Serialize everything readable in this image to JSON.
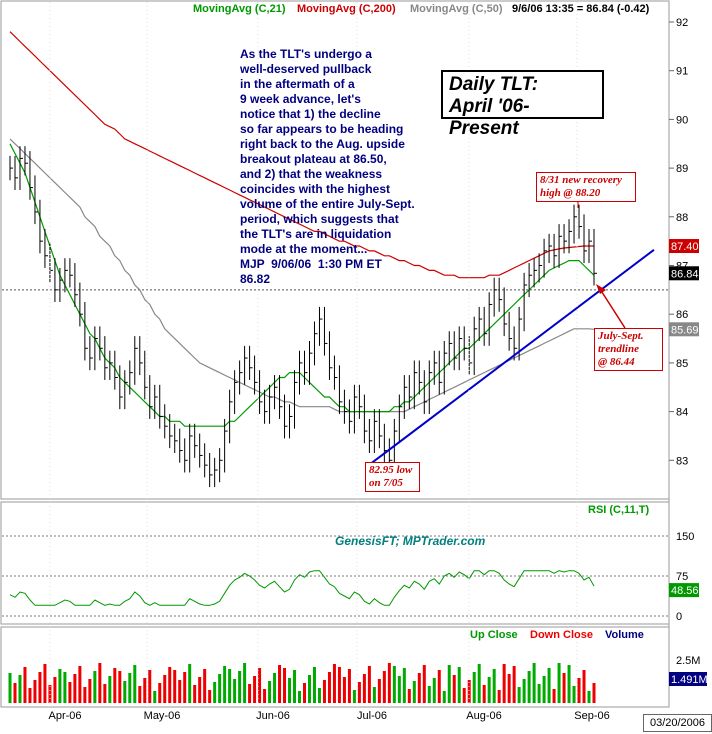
{
  "header": {
    "ma21": "MovingAvg (C,21)",
    "ma200": "MovingAvg (C,200)",
    "ma50": "MovingAvg (C,50)",
    "quote": "9/6/06 13:35 = 86.84 (-0.42)"
  },
  "colors": {
    "ma21": "#009900",
    "ma200": "#cc0000",
    "ma50": "#888888",
    "trendline": "#0000cc",
    "price": "#000000",
    "up_volume": "#00aa00",
    "down_volume": "#ee0000",
    "navy": "#000080"
  },
  "title": {
    "line1": "Daily TLT:",
    "line2": "April '06-Present"
  },
  "commentary": "As the TLT's undergo a\nwell-deserved pullback\nin the aftermath of a\n9 week advance, let's\nnotice that 1) the decline\nso far appears to be heading\nright back to the Aug. upside\nbreakout plateau at 86.50,\nand 2) that the weakness\ncoincides with the highest\nvolume of the entire July-Sept.\nperiod, which suggests that\nthe TLT's are in liquidation\nmode at the moment...\nMJP  9/06/06  1:30 PM ET\n86.82",
  "callouts": {
    "recovery": [
      "8/31 new recovery",
      "high @ 88.20"
    ],
    "trendline": [
      "July-Sept.",
      "trendline",
      "@ 86.44"
    ],
    "low": [
      "82.95 low",
      "on 7/05"
    ]
  },
  "watermark": "GenesisFT; MPTrader.com",
  "rsi_label": "RSI (C,11,T)",
  "volume_legend": {
    "up": "Up Close",
    "down": "Down Close",
    "volume": "Volume"
  },
  "date_stamp": "03/20/2006",
  "chart_data": [
    {
      "type": "ohlc",
      "x_ticks": [
        "Apr-06",
        "May-06",
        "Jun-06",
        "Jul-06",
        "Aug-06",
        "Sep-06"
      ],
      "y_ticks": [
        83,
        84,
        85,
        86,
        87,
        88,
        89,
        90,
        91,
        92
      ],
      "ylim": [
        82.3,
        92.3
      ],
      "last_labels": {
        "ma200": 87.4,
        "price": 86.84,
        "ma50": 85.69
      },
      "close": [
        89.0,
        88.8,
        89.2,
        89.1,
        88.6,
        88.1,
        87.5,
        87.2,
        86.9,
        86.5,
        86.7,
        86.9,
        86.8,
        86.4,
        86.0,
        85.3,
        85.1,
        85.5,
        85.3,
        84.9,
        85.0,
        84.7,
        84.3,
        84.6,
        84.8,
        85.3,
        85.0,
        84.5,
        84.1,
        84.3,
        83.9,
        83.7,
        83.5,
        83.4,
        83.2,
        83.0,
        83.5,
        83.3,
        83.1,
        82.9,
        82.7,
        82.8,
        83.0,
        83.6,
        84.2,
        84.6,
        84.8,
        85.1,
        84.9,
        84.6,
        84.2,
        84.0,
        84.3,
        84.5,
        84.1,
        83.7,
        83.9,
        84.6,
        85.0,
        84.8,
        85.2,
        85.6,
        85.9,
        85.4,
        84.9,
        84.7,
        84.2,
        84.0,
        83.8,
        84.3,
        84.1,
        83.6,
        83.4,
        83.8,
        83.5,
        83.2,
        83.0,
        83.6,
        84.1,
        84.5,
        84.3,
        84.8,
        84.6,
        84.2,
        84.8,
        85.0,
        84.6,
        85.2,
        85.4,
        85.1,
        85.5,
        85.3,
        85.0,
        85.7,
        85.9,
        85.6,
        86.2,
        86.5,
        86.3,
        85.8,
        85.5,
        85.3,
        85.9,
        86.6,
        86.8,
        86.9,
        87.0,
        87.3,
        87.4,
        87.2,
        87.6,
        87.5,
        87.7,
        88.0,
        87.8,
        87.3,
        87.5,
        86.84
      ],
      "ma21": [
        89.5,
        89.3,
        89.1,
        88.9,
        88.6,
        88.3,
        88.0,
        87.7,
        87.4,
        87.1,
        86.8,
        86.6,
        86.4,
        86.2,
        86.0,
        85.8,
        85.6,
        85.5,
        85.3,
        85.1,
        85.0,
        84.9,
        84.7,
        84.6,
        84.5,
        84.4,
        84.3,
        84.2,
        84.1,
        84.0,
        83.9,
        83.9,
        83.8,
        83.8,
        83.8,
        83.7,
        83.7,
        83.7,
        83.7,
        83.7,
        83.7,
        83.7,
        83.7,
        83.7,
        83.8,
        83.8,
        83.9,
        84.0,
        84.1,
        84.2,
        84.3,
        84.4,
        84.5,
        84.6,
        84.7,
        84.7,
        84.8,
        84.8,
        84.8,
        84.7,
        84.6,
        84.5,
        84.4,
        84.3,
        84.3,
        84.2,
        84.1,
        84.1,
        84.0,
        84.0,
        84.0,
        84.0,
        84.0,
        84.0,
        84.0,
        84.0,
        84.0,
        84.1,
        84.1,
        84.2,
        84.2,
        84.3,
        84.4,
        84.5,
        84.6,
        84.7,
        84.8,
        84.9,
        85.0,
        85.1,
        85.2,
        85.3,
        85.3,
        85.4,
        85.5,
        85.6,
        85.7,
        85.8,
        85.9,
        86.0,
        86.1,
        86.2,
        86.3,
        86.4,
        86.5,
        86.6,
        86.7,
        86.8,
        86.9,
        86.95,
        87.0,
        87.05,
        87.1,
        87.1,
        87.1,
        87.0,
        86.9,
        86.8
      ],
      "ma50": [
        89.6,
        89.5,
        89.4,
        89.3,
        89.2,
        89.1,
        89.0,
        88.9,
        88.8,
        88.7,
        88.6,
        88.5,
        88.4,
        88.3,
        88.2,
        88.0,
        87.9,
        87.8,
        87.6,
        87.5,
        87.4,
        87.2,
        87.1,
        86.9,
        86.8,
        86.6,
        86.5,
        86.3,
        86.2,
        86.0,
        85.9,
        85.7,
        85.6,
        85.5,
        85.4,
        85.3,
        85.2,
        85.1,
        85.0,
        84.95,
        84.9,
        84.85,
        84.8,
        84.75,
        84.7,
        84.65,
        84.6,
        84.55,
        84.5,
        84.45,
        84.4,
        84.35,
        84.3,
        84.3,
        84.25,
        84.2,
        84.2,
        84.15,
        84.1,
        84.1,
        84.1,
        84.1,
        84.1,
        84.1,
        84.1,
        84.05,
        84.0,
        84.0,
        84.0,
        84.0,
        84.0,
        84.0,
        84.0,
        84.0,
        84.0,
        84.0,
        84.0,
        84.0,
        84.0,
        84.0,
        84.05,
        84.1,
        84.15,
        84.2,
        84.25,
        84.3,
        84.35,
        84.4,
        84.45,
        84.5,
        84.55,
        84.6,
        84.65,
        84.7,
        84.75,
        84.8,
        84.85,
        84.9,
        84.95,
        85.0,
        85.05,
        85.1,
        85.15,
        85.2,
        85.25,
        85.3,
        85.35,
        85.4,
        85.45,
        85.5,
        85.55,
        85.6,
        85.65,
        85.7,
        85.7,
        85.7,
        85.7,
        85.69
      ],
      "ma200": [
        91.8,
        91.7,
        91.6,
        91.5,
        91.4,
        91.3,
        91.2,
        91.1,
        91.0,
        90.9,
        90.8,
        90.7,
        90.6,
        90.5,
        90.4,
        90.3,
        90.2,
        90.1,
        90.0,
        89.9,
        89.85,
        89.8,
        89.7,
        89.6,
        89.55,
        89.5,
        89.45,
        89.4,
        89.35,
        89.3,
        89.25,
        89.2,
        89.15,
        89.1,
        89.05,
        89.0,
        88.95,
        88.9,
        88.85,
        88.8,
        88.75,
        88.7,
        88.65,
        88.6,
        88.55,
        88.5,
        88.45,
        88.4,
        88.35,
        88.3,
        88.25,
        88.2,
        88.15,
        88.1,
        88.05,
        88.0,
        87.95,
        87.9,
        87.85,
        87.8,
        87.75,
        87.7,
        87.7,
        87.65,
        87.6,
        87.55,
        87.5,
        87.5,
        87.45,
        87.4,
        87.4,
        87.35,
        87.3,
        87.3,
        87.25,
        87.2,
        87.2,
        87.15,
        87.1,
        87.1,
        87.05,
        87.0,
        87.0,
        86.95,
        86.9,
        86.9,
        86.85,
        86.8,
        86.8,
        86.8,
        86.75,
        86.75,
        86.75,
        86.75,
        86.75,
        86.75,
        86.8,
        86.8,
        86.8,
        86.85,
        86.9,
        86.95,
        87.0,
        87.05,
        87.1,
        87.15,
        87.2,
        87.25,
        87.3,
        87.32,
        87.34,
        87.36,
        87.37,
        87.38,
        87.39,
        87.4,
        87.4,
        87.4
      ],
      "trendline": [
        [
          82.95,
          86.44
        ]
      ],
      "plateau": 86.5
    },
    {
      "type": "line",
      "name": "RSI (C,11,T)",
      "y_ticks": [
        0,
        75,
        150
      ],
      "ylim": [
        0,
        150
      ],
      "last_value": 48.56
    },
    {
      "type": "bar",
      "name": "Volume",
      "y_ticks": [
        "2.5M"
      ],
      "last_value": "1.491M"
    }
  ]
}
